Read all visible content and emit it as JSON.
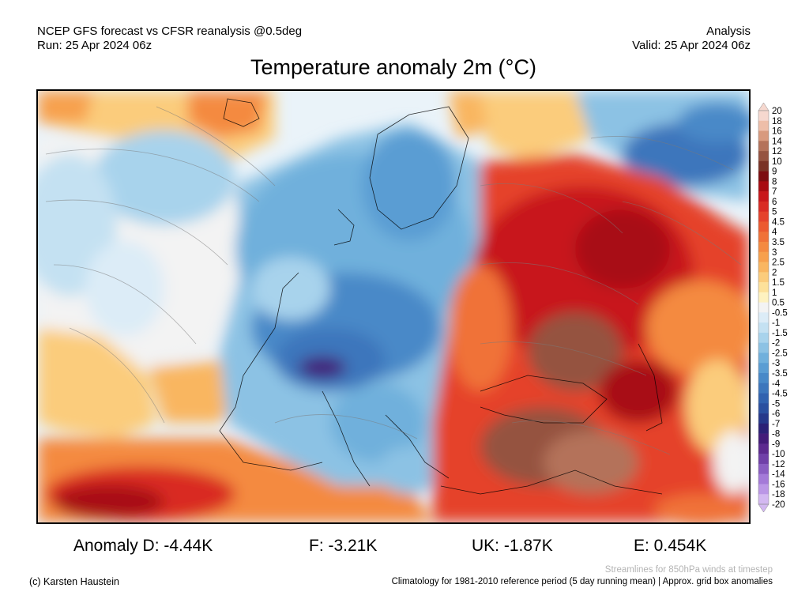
{
  "header": {
    "left_line1": "NCEP GFS forecast vs CFSR reanalysis @0.5deg",
    "left_line2": "Run: 25 Apr 2024 06z",
    "right_line1": "Analysis",
    "right_line2": "Valid: 25 Apr 2024 06z"
  },
  "title": "Temperature anomaly 2m (°C)",
  "colorbar": {
    "levels": [
      "20",
      "18",
      "16",
      "14",
      "12",
      "10",
      "9",
      "8",
      "7",
      "6",
      "5",
      "4.5",
      "4",
      "3.5",
      "3",
      "2.5",
      "2",
      "1.5",
      "1",
      "0.5",
      "-0.5",
      "-1",
      "-1.5",
      "-2",
      "-2.5",
      "-3",
      "-3.5",
      "-4",
      "-4.5",
      "-5",
      "-6",
      "-7",
      "-8",
      "-9",
      "-10",
      "-12",
      "-14",
      "-16",
      "-18",
      "-20"
    ],
    "colors": [
      "#f6d8cf",
      "#eebea9",
      "#d89a7e",
      "#b4725a",
      "#955340",
      "#7a3326",
      "#7d0d10",
      "#a80c12",
      "#c8171b",
      "#d92b24",
      "#e5432c",
      "#ec5a30",
      "#f07238",
      "#f48a41",
      "#f7a04d",
      "#f9b661",
      "#fbcc7c",
      "#fde19a",
      "#fef2c0",
      "#f3f3f3",
      "#dcecf7",
      "#c4e1f2",
      "#a8d3ec",
      "#8cc2e4",
      "#70b0dc",
      "#5a9dd3",
      "#4889c8",
      "#3c76bc",
      "#3162af",
      "#2a4f9f",
      "#26388a",
      "#2b2176",
      "#431c79",
      "#5c2a8f",
      "#7040a8",
      "#8a5dc2",
      "#a47ad8",
      "#bb97e6",
      "#d3b8f1"
    ]
  },
  "stats": {
    "d": "Anomaly D: -4.44K",
    "f": "F: -3.21K",
    "uk": "UK: -1.87K",
    "e": "E: 0.454K"
  },
  "footer": {
    "streamlines_note": "Streamlines for 850hPa winds at timestep",
    "copyright": "(c) Karsten Haustein",
    "climatology_note": "Climatology for 1981-2010 reference period (5 day running mean) | Approx. grid box anomalies"
  }
}
